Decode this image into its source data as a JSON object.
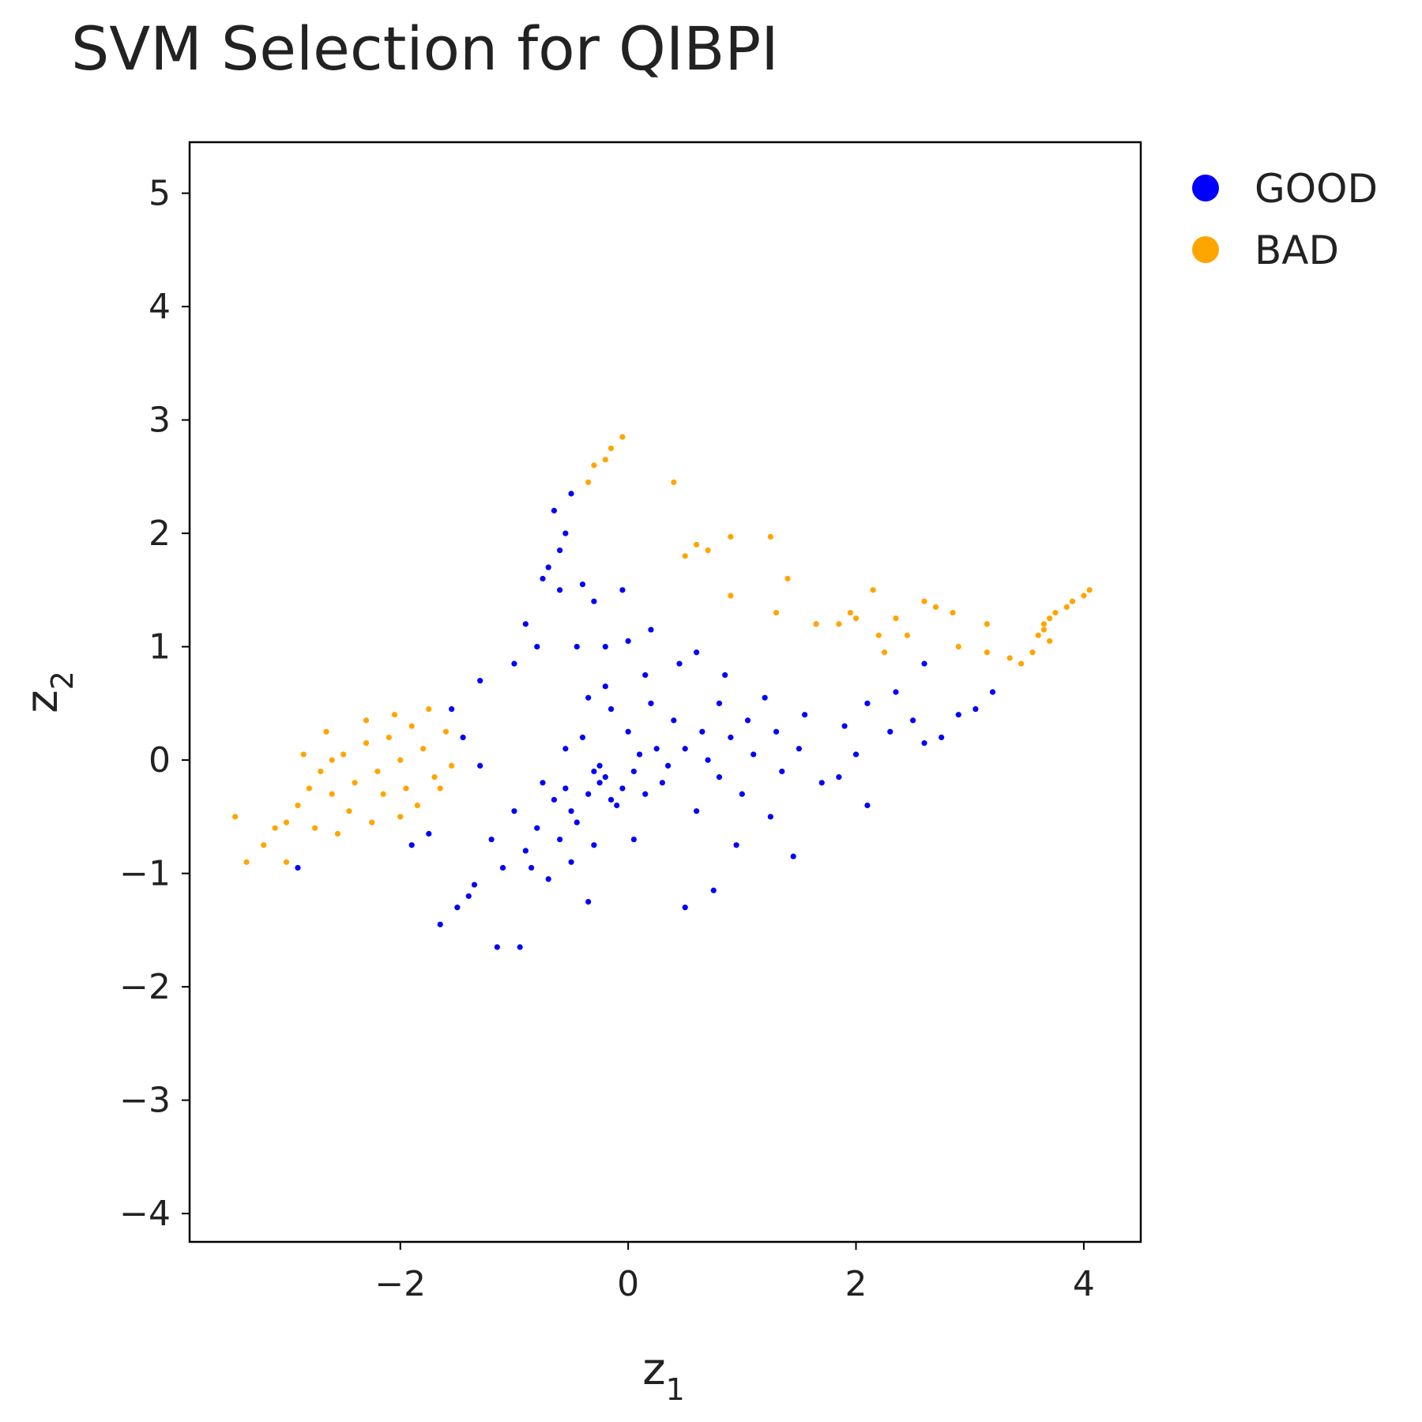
{
  "chart_data": {
    "type": "scatter",
    "title": "SVM Selection for QIBPI",
    "xlabel": {
      "base": "z",
      "sub": "1"
    },
    "ylabel": {
      "base": "z",
      "sub": "2"
    },
    "xlim": [
      -3.85,
      4.5
    ],
    "ylim": [
      -4.25,
      5.45
    ],
    "xticks": [
      -2,
      0,
      2,
      4
    ],
    "yticks": [
      -4,
      -3,
      -2,
      -1,
      0,
      1,
      2,
      3,
      4,
      5
    ],
    "xtick_labels": [
      "−2",
      "0",
      "2",
      "4"
    ],
    "ytick_labels": [
      "−4",
      "−3",
      "−2",
      "−1",
      "0",
      "1",
      "2",
      "3",
      "4",
      "5"
    ],
    "grid": false,
    "legend_position": "top-right, outside plot",
    "series": [
      {
        "name": "GOOD",
        "color": "#0000ff",
        "points": [
          [
            -0.2,
            -0.15
          ],
          [
            -0.35,
            -0.3
          ],
          [
            -0.1,
            -0.4
          ],
          [
            0.05,
            -0.1
          ],
          [
            -0.25,
            -0.05
          ],
          [
            -0.45,
            -0.55
          ],
          [
            -0.6,
            -0.7
          ],
          [
            -0.8,
            -0.6
          ],
          [
            -0.5,
            -0.9
          ],
          [
            -0.9,
            -0.8
          ],
          [
            -0.7,
            -1.05
          ],
          [
            -0.3,
            -0.75
          ],
          [
            0.1,
            0.05
          ],
          [
            0.3,
            -0.2
          ],
          [
            0.5,
            0.1
          ],
          [
            0.7,
            0.0
          ],
          [
            0.9,
            0.2
          ],
          [
            1.1,
            0.05
          ],
          [
            1.3,
            0.25
          ],
          [
            1.5,
            0.1
          ],
          [
            1.7,
            -0.2
          ],
          [
            0.4,
            0.35
          ],
          [
            0.2,
            0.5
          ],
          [
            0.8,
            0.5
          ],
          [
            1.0,
            -0.3
          ],
          [
            0.6,
            -0.45
          ],
          [
            1.25,
            -0.5
          ],
          [
            0.0,
            0.25
          ],
          [
            -0.15,
            0.45
          ],
          [
            -0.4,
            0.2
          ],
          [
            -0.55,
            0.1
          ],
          [
            -0.75,
            -0.2
          ],
          [
            -1.0,
            -0.45
          ],
          [
            -1.2,
            -0.7
          ],
          [
            -1.35,
            -1.1
          ],
          [
            -1.5,
            -1.3
          ],
          [
            -1.65,
            -1.45
          ],
          [
            -1.4,
            -1.2
          ],
          [
            -1.1,
            -0.95
          ],
          [
            -0.95,
            -1.65
          ],
          [
            -1.15,
            -1.65
          ],
          [
            -0.35,
            -1.25
          ],
          [
            0.5,
            -1.3
          ],
          [
            0.75,
            -1.15
          ],
          [
            -0.7,
            1.7
          ],
          [
            -0.75,
            1.6
          ],
          [
            -0.6,
            1.85
          ],
          [
            -0.55,
            2.0
          ],
          [
            -0.65,
            2.2
          ],
          [
            -0.5,
            2.35
          ],
          [
            -0.6,
            1.5
          ],
          [
            -0.4,
            1.55
          ],
          [
            -0.3,
            1.4
          ],
          [
            -0.8,
            1.0
          ],
          [
            -0.9,
            1.2
          ],
          [
            -1.0,
            0.85
          ],
          [
            -1.3,
            0.7
          ],
          [
            -1.55,
            0.45
          ],
          [
            -1.45,
            0.2
          ],
          [
            -1.3,
            -0.05
          ],
          [
            -0.45,
            1.0
          ],
          [
            -0.2,
            1.0
          ],
          [
            0.0,
            1.05
          ],
          [
            0.2,
            1.15
          ],
          [
            -0.05,
            1.5
          ],
          [
            0.15,
            0.75
          ],
          [
            0.45,
            0.85
          ],
          [
            0.6,
            0.95
          ],
          [
            0.85,
            0.75
          ],
          [
            1.2,
            0.55
          ],
          [
            1.55,
            0.4
          ],
          [
            1.9,
            0.3
          ],
          [
            2.1,
            0.5
          ],
          [
            2.3,
            0.25
          ],
          [
            2.5,
            0.35
          ],
          [
            2.6,
            0.15
          ],
          [
            2.75,
            0.2
          ],
          [
            2.9,
            0.4
          ],
          [
            3.05,
            0.45
          ],
          [
            3.2,
            0.6
          ],
          [
            2.6,
            0.85
          ],
          [
            2.35,
            0.6
          ],
          [
            2.0,
            0.05
          ],
          [
            1.85,
            -0.15
          ],
          [
            2.1,
            -0.4
          ],
          [
            1.45,
            -0.85
          ],
          [
            0.95,
            -0.75
          ],
          [
            -2.9,
            -0.95
          ],
          [
            -1.9,
            -0.75
          ],
          [
            -1.75,
            -0.65
          ],
          [
            -0.25,
            -0.2
          ],
          [
            -0.15,
            -0.35
          ],
          [
            -0.05,
            -0.25
          ],
          [
            -0.3,
            -0.1
          ],
          [
            0.15,
            -0.3
          ],
          [
            0.25,
            0.1
          ],
          [
            -0.5,
            -0.45
          ],
          [
            -0.65,
            -0.35
          ],
          [
            -0.85,
            -0.95
          ],
          [
            -0.55,
            -0.25
          ],
          [
            0.35,
            -0.05
          ],
          [
            0.65,
            0.25
          ],
          [
            1.05,
            0.35
          ],
          [
            1.35,
            -0.1
          ],
          [
            0.8,
            -0.15
          ],
          [
            -0.2,
            0.65
          ],
          [
            -0.35,
            0.55
          ],
          [
            0.05,
            -0.7
          ]
        ]
      },
      {
        "name": "BAD",
        "color": "#ffa500",
        "points": [
          [
            -2.0,
            0.0
          ],
          [
            -2.2,
            -0.1
          ],
          [
            -1.8,
            0.1
          ],
          [
            -2.4,
            -0.2
          ],
          [
            -2.6,
            -0.3
          ],
          [
            -1.9,
            0.3
          ],
          [
            -2.1,
            0.2
          ],
          [
            -1.7,
            -0.15
          ],
          [
            -2.3,
            0.15
          ],
          [
            -2.5,
            0.05
          ],
          [
            -2.7,
            -0.1
          ],
          [
            -2.8,
            -0.25
          ],
          [
            -2.9,
            -0.4
          ],
          [
            -3.0,
            -0.55
          ],
          [
            -3.1,
            -0.6
          ],
          [
            -3.2,
            -0.75
          ],
          [
            -3.35,
            -0.9
          ],
          [
            -3.45,
            -0.5
          ],
          [
            -3.0,
            -0.9
          ],
          [
            -2.85,
            0.05
          ],
          [
            -2.65,
            0.25
          ],
          [
            -2.3,
            0.35
          ],
          [
            -2.05,
            0.4
          ],
          [
            -1.75,
            0.45
          ],
          [
            -1.6,
            0.25
          ],
          [
            -1.55,
            -0.05
          ],
          [
            -1.65,
            -0.25
          ],
          [
            -1.85,
            -0.4
          ],
          [
            -2.0,
            -0.5
          ],
          [
            -2.25,
            -0.55
          ],
          [
            -2.55,
            -0.65
          ],
          [
            -2.75,
            -0.6
          ],
          [
            -1.95,
            -0.25
          ],
          [
            -2.15,
            -0.3
          ],
          [
            -2.45,
            -0.45
          ],
          [
            -2.6,
            0.0
          ],
          [
            -0.35,
            2.45
          ],
          [
            -0.3,
            2.6
          ],
          [
            -0.2,
            2.65
          ],
          [
            -0.15,
            2.75
          ],
          [
            -0.05,
            2.85
          ],
          [
            0.4,
            2.45
          ],
          [
            0.5,
            1.8
          ],
          [
            0.6,
            1.9
          ],
          [
            0.7,
            1.85
          ],
          [
            0.9,
            1.97
          ],
          [
            1.25,
            1.97
          ],
          [
            1.4,
            1.6
          ],
          [
            0.9,
            1.45
          ],
          [
            1.3,
            1.3
          ],
          [
            1.65,
            1.2
          ],
          [
            1.85,
            1.2
          ],
          [
            1.95,
            1.3
          ],
          [
            2.0,
            1.25
          ],
          [
            2.15,
            1.5
          ],
          [
            2.2,
            1.1
          ],
          [
            2.25,
            0.95
          ],
          [
            2.35,
            1.25
          ],
          [
            2.45,
            1.1
          ],
          [
            2.6,
            1.4
          ],
          [
            2.7,
            1.35
          ],
          [
            2.85,
            1.3
          ],
          [
            2.9,
            1.0
          ],
          [
            3.15,
            1.2
          ],
          [
            3.15,
            0.95
          ],
          [
            3.35,
            0.9
          ],
          [
            3.45,
            0.85
          ],
          [
            3.55,
            0.95
          ],
          [
            3.6,
            1.1
          ],
          [
            3.65,
            1.2
          ],
          [
            3.7,
            1.05
          ],
          [
            3.75,
            1.3
          ],
          [
            3.85,
            1.35
          ],
          [
            3.9,
            1.4
          ],
          [
            4.0,
            1.45
          ],
          [
            4.05,
            1.5
          ],
          [
            3.65,
            1.15
          ],
          [
            3.7,
            1.25
          ]
        ]
      }
    ]
  }
}
